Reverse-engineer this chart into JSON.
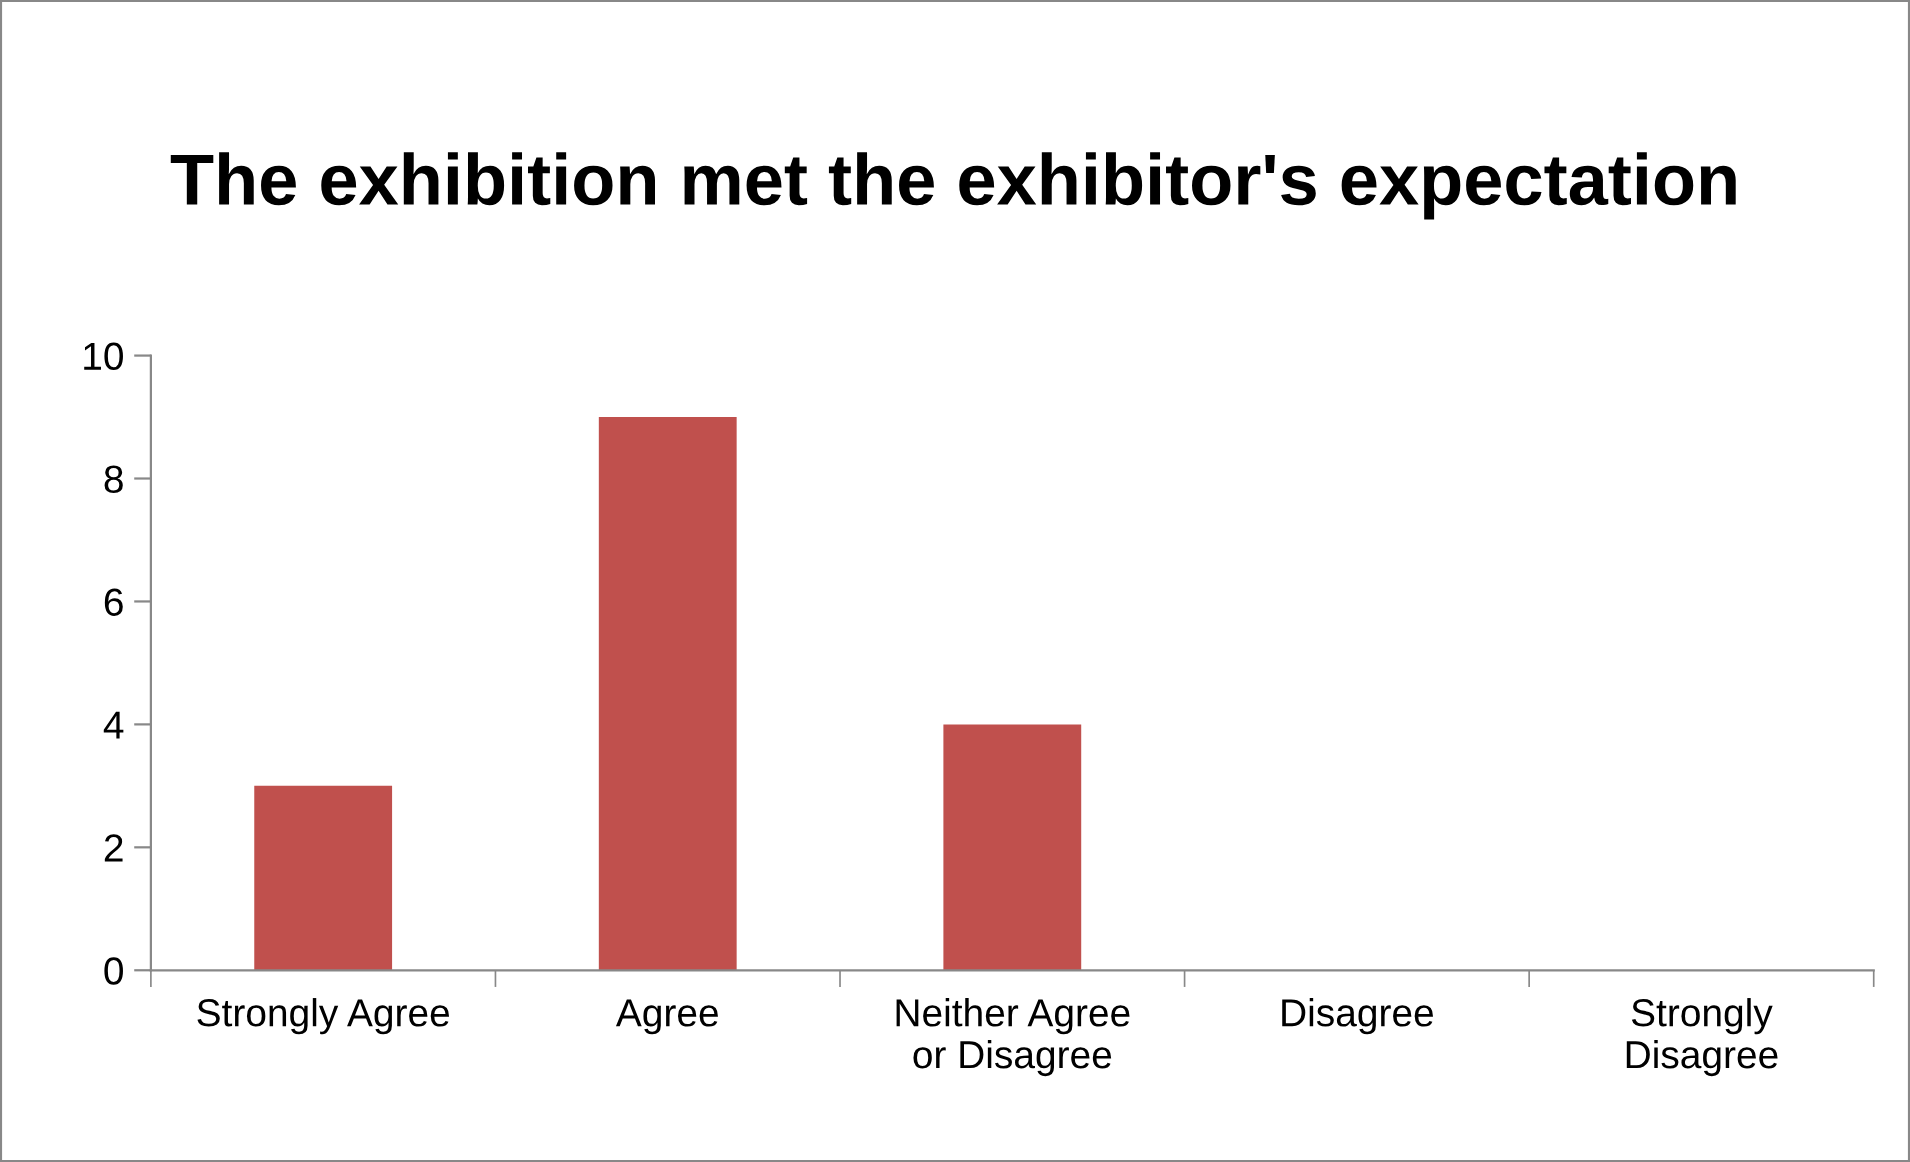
{
  "chart_data": {
    "type": "bar",
    "title": "The exhibition met the exhibitor's expectation",
    "categories": [
      "Strongly Agree",
      "Agree",
      "Neither Agree\nor Disagree",
      "Disagree",
      "Strongly\nDisagree"
    ],
    "values": [
      3,
      9,
      4,
      0,
      0
    ],
    "color": "#c0504d",
    "ylim": [
      0,
      10
    ],
    "yticks": [
      0,
      2,
      4,
      6,
      8,
      10
    ],
    "grid": false,
    "legend": false
  }
}
